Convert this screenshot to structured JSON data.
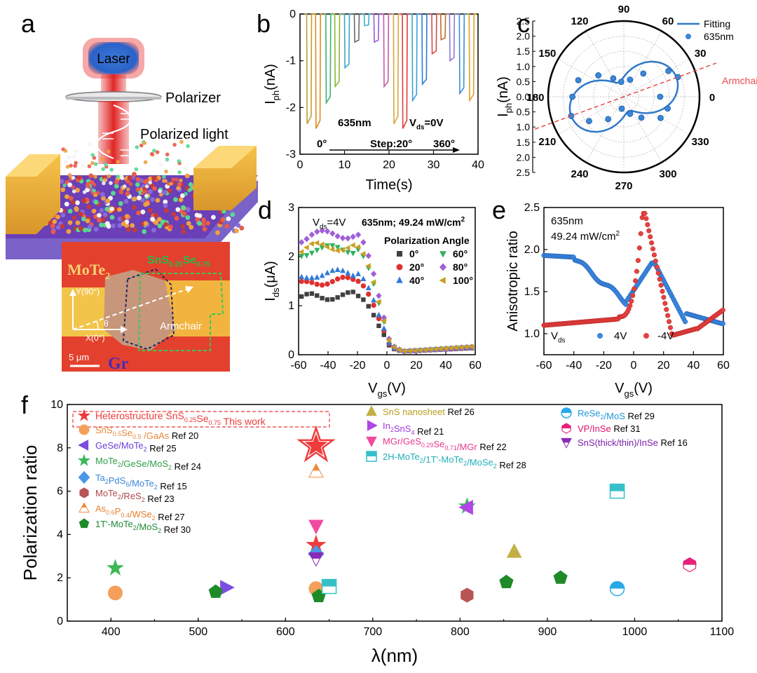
{
  "panels": {
    "a": {
      "letter": "a",
      "laser": "Laser",
      "polarizer": "Polarizer",
      "polarized_light": "Polarized light",
      "mote2": "MoTe",
      "mote2_sub": "2",
      "sns_label": "SnS",
      "sns_sub1": "0.25",
      "sns_se": "Se",
      "sns_sub2": "0.75",
      "y_axis_label": "Y(90°)",
      "x_axis_label": "X(0°)",
      "theta": "θ",
      "armchair": "Armchair",
      "scale": "5 μm",
      "gr": "Gr"
    },
    "b": {
      "letter": "b"
    },
    "c": {
      "letter": "c"
    },
    "d": {
      "letter": "d"
    },
    "e": {
      "letter": "e"
    },
    "f": {
      "letter": "f"
    }
  },
  "chart_data": [
    {
      "id": "b",
      "type": "line",
      "title": "",
      "xlabel": "Time(s)",
      "ylabel_main": "I",
      "ylabel_sub": "ph",
      "ylabel_unit": "(nA)",
      "xlim": [
        0,
        40
      ],
      "ylim": [
        -3,
        0
      ],
      "xticks": [
        0,
        10,
        20,
        30,
        40
      ],
      "yticks": [
        0,
        -1,
        -2,
        -3
      ],
      "annotations": {
        "wavelength": "635nm",
        "vds_main": "V",
        "vds_sub": "ds",
        "vds_val": "=0V",
        "start": "0°",
        "step": "Step:20°",
        "end": "360°"
      },
      "pulses": [
        {
          "t": 1.5,
          "depth": -2.35,
          "color": "#b8a22e"
        },
        {
          "t": 3.5,
          "depth": -2.45,
          "color": "#e08a1e"
        },
        {
          "t": 5.8,
          "depth": -1.9,
          "color": "#3bb273"
        },
        {
          "t": 7.8,
          "depth": -1.55,
          "color": "#8ab832"
        },
        {
          "t": 10.0,
          "depth": -1.15,
          "color": "#3aa6c7"
        },
        {
          "t": 12.2,
          "depth": -0.6,
          "color": "#6a6a6a"
        },
        {
          "t": 14.4,
          "depth": -0.25,
          "color": "#3ab5c9"
        },
        {
          "t": 16.6,
          "depth": -0.6,
          "color": "#9b59d0"
        },
        {
          "t": 18.8,
          "depth": -1.55,
          "color": "#c45aa8"
        },
        {
          "t": 21.0,
          "depth": -2.35,
          "color": "#d8a63a"
        },
        {
          "t": 23.0,
          "depth": -2.45,
          "color": "#e23b3b"
        },
        {
          "t": 25.2,
          "depth": -1.85,
          "color": "#3aa0d8"
        },
        {
          "t": 27.4,
          "depth": -1.5,
          "color": "#2f7bd1"
        },
        {
          "t": 29.6,
          "depth": -0.85,
          "color": "#d34a4a"
        },
        {
          "t": 31.6,
          "depth": -0.55,
          "color": "#c46a2c"
        },
        {
          "t": 33.6,
          "depth": -1.0,
          "color": "#8c7ad0"
        },
        {
          "t": 35.8,
          "depth": -1.7,
          "color": "#3a8fd8"
        },
        {
          "t": 38.0,
          "depth": -1.85,
          "color": "#e0a020"
        }
      ]
    },
    {
      "id": "c",
      "type": "scatter",
      "title": "",
      "ylabel_main": "I",
      "ylabel_sub": "ph",
      "ylabel_unit": "(nA)",
      "angle_labels": [
        "0",
        "30",
        "60",
        "90",
        "120",
        "150",
        "180",
        "210",
        "240",
        "270",
        "300",
        "330"
      ],
      "radial_ticks": [
        "2.5",
        "2.0",
        "1.5",
        "1.0",
        "0.5",
        "0.0",
        "0.5",
        "1.0",
        "1.5",
        "2.0",
        "2.5"
      ],
      "rmax": 2.5,
      "legend": [
        {
          "label": "Fitting",
          "color": "#2f78c8"
        },
        {
          "label": "635nm",
          "color": "#2f78c8"
        }
      ],
      "axis_annotation": "Armchair",
      "armchair_angle_deg": 20,
      "fit": {
        "a": 0.5,
        "b": 1.85,
        "phase_deg": 20
      },
      "points": [
        {
          "angle": 0,
          "r": 1.2
        },
        {
          "angle": 20,
          "r": 1.9
        },
        {
          "angle": 30,
          "r": 1.7
        },
        {
          "angle": 50,
          "r": 1.0
        },
        {
          "angle": 70,
          "r": 0.6
        },
        {
          "angle": 100,
          "r": 0.5
        },
        {
          "angle": 120,
          "r": 0.7
        },
        {
          "angle": 140,
          "r": 1.1
        },
        {
          "angle": 160,
          "r": 1.6
        },
        {
          "angle": 180,
          "r": 1.7
        },
        {
          "angle": 200,
          "r": 1.85
        },
        {
          "angle": 215,
          "r": 1.4
        },
        {
          "angle": 235,
          "r": 0.9
        },
        {
          "angle": 260,
          "r": 0.4
        },
        {
          "angle": 290,
          "r": 0.6
        },
        {
          "angle": 310,
          "r": 0.9
        },
        {
          "angle": 330,
          "r": 1.4
        },
        {
          "angle": 345,
          "r": 1.5
        }
      ]
    },
    {
      "id": "d",
      "type": "scatter",
      "title": "",
      "xlabel_main": "V",
      "xlabel_sub": "gs",
      "xlabel_unit": "(V)",
      "ylabel_main": "I",
      "ylabel_sub": "ds",
      "ylabel_unit": "(μA)",
      "xlim": [
        -60,
        60
      ],
      "ylim": [
        0,
        3
      ],
      "xticks": [
        -60,
        -40,
        -20,
        0,
        20,
        40,
        60
      ],
      "yticks": [
        0,
        1,
        2,
        3
      ],
      "annotations": {
        "vds_main": "V",
        "vds_sub": "ds",
        "vds_val": "=4V",
        "cond": "635nm; 49.24 mW/cm",
        "cond_sup": "2",
        "legend_title": "Polarization Angle"
      },
      "series": [
        {
          "name": "0°",
          "color": "#404040",
          "marker": "square",
          "plateau": 1.2
        },
        {
          "name": "20°",
          "color": "#e03030",
          "marker": "circle",
          "plateau": 1.5
        },
        {
          "name": "40°",
          "color": "#2f7bd8",
          "marker": "triangle-up",
          "plateau": 1.65
        },
        {
          "name": "60°",
          "color": "#2fb060",
          "marker": "triangle-down",
          "plateau": 2.15
        },
        {
          "name": "80°",
          "color": "#a060d8",
          "marker": "diamond",
          "plateau": 2.45
        },
        {
          "name": "100°",
          "color": "#c8a020",
          "marker": "triangle-left",
          "plateau": 2.2
        }
      ]
    },
    {
      "id": "e",
      "type": "scatter",
      "title": "",
      "xlabel_main": "V",
      "xlabel_sub": "gs",
      "xlabel_unit": "(V)",
      "ylabel": "Anisotropic ratio",
      "xlim": [
        -60,
        60
      ],
      "ylim": [
        0.75,
        2.5
      ],
      "xticks": [
        -60,
        -40,
        -20,
        0,
        20,
        40,
        60
      ],
      "yticks": [
        1.0,
        1.5,
        2.0,
        2.5
      ],
      "annotations": {
        "wl": "635nm",
        "power": "49.24 mW/cm",
        "power_sup": "2",
        "vds_main": "V",
        "vds_sub": "ds"
      },
      "series": [
        {
          "name": "4V",
          "color": "#2f78d8"
        },
        {
          "name": "-4V",
          "color": "#e03030"
        }
      ]
    },
    {
      "id": "f",
      "type": "scatter",
      "title": "",
      "xlabel": "λ(nm)",
      "ylabel": "Polarization ratio",
      "xlim": [
        350,
        1100
      ],
      "ylim": [
        0,
        10
      ],
      "xticks": [
        400,
        500,
        600,
        700,
        800,
        900,
        1000,
        1100
      ],
      "yticks": [
        0,
        2,
        4,
        6,
        8,
        10
      ],
      "legend": [
        {
          "id": "L0",
          "col": 0,
          "row": 0,
          "marker": "star",
          "fill": "#ef3b3b",
          "stroke": "#ef3b3b",
          "parts": [
            [
              "Heterostructure ",
              ""
            ],
            [
              "SnS",
              ""
            ],
            [
              "0.25",
              "sub"
            ],
            [
              "Se",
              ""
            ],
            [
              "0.75",
              "sub"
            ],
            [
              " This work",
              ""
            ]
          ],
          "color": "#ef3b3b",
          "highlight": true
        },
        {
          "id": "L1",
          "col": 0,
          "row": 1,
          "marker": "circle",
          "fill": "#f4a05a",
          "stroke": "#f4a05a",
          "parts": [
            [
              "SnS",
              ""
            ],
            [
              "0.5",
              "sub"
            ],
            [
              "Se",
              ""
            ],
            [
              "0.5",
              "sub"
            ],
            [
              " /GaAs",
              ""
            ],
            [
              " Ref 20",
              "ref"
            ]
          ],
          "color": "#e8883c"
        },
        {
          "id": "L2",
          "col": 0,
          "row": 2,
          "marker": "triangle-left",
          "fill": "#7b4ee0",
          "stroke": "#7b4ee0",
          "parts": [
            [
              "GeSe/MoTe",
              ""
            ],
            [
              "2",
              "sub"
            ],
            [
              " Ref 25",
              "ref"
            ]
          ],
          "color": "#6b3fd6"
        },
        {
          "id": "L3",
          "col": 0,
          "row": 3,
          "marker": "star",
          "fill": "#3cb857",
          "stroke": "#3cb857",
          "parts": [
            [
              "MoTe",
              ""
            ],
            [
              "2",
              "sub"
            ],
            [
              "/GeSe/MoS",
              ""
            ],
            [
              "2",
              "sub"
            ],
            [
              " Ref 24",
              "ref"
            ]
          ],
          "color": "#2e9e48"
        },
        {
          "id": "L4",
          "col": 0,
          "row": 4,
          "marker": "diamond",
          "fill": "#4a98e8",
          "stroke": "#4a98e8",
          "parts": [
            [
              "Ta",
              ""
            ],
            [
              "2",
              "sub"
            ],
            [
              "PdS",
              ""
            ],
            [
              "6",
              "sub"
            ],
            [
              "/MoTe",
              ""
            ],
            [
              "2",
              "sub"
            ],
            [
              " Ref 15",
              "ref"
            ]
          ],
          "color": "#3a88d8"
        },
        {
          "id": "L5",
          "col": 0,
          "row": 5,
          "marker": "hexagon",
          "fill": "#b85454",
          "stroke": "#b85454",
          "parts": [
            [
              "MoTe",
              ""
            ],
            [
              "2",
              "sub"
            ],
            [
              "/ReS",
              ""
            ],
            [
              "2",
              "sub"
            ],
            [
              " Ref 23",
              "ref"
            ]
          ],
          "color": "#b04848"
        },
        {
          "id": "L6",
          "col": 0,
          "row": 6,
          "marker": "triangle-split",
          "fill": "#f08a3a",
          "stroke": "#f08a3a",
          "parts": [
            [
              "As",
              ""
            ],
            [
              "0.6",
              "sub"
            ],
            [
              "P",
              ""
            ],
            [
              "0.4",
              "sub"
            ],
            [
              "/WSe",
              ""
            ],
            [
              "2",
              "sub"
            ],
            [
              " Ref 27",
              "ref"
            ]
          ],
          "color": "#e8802e"
        },
        {
          "id": "L7",
          "col": 0,
          "row": 7,
          "marker": "pentagon",
          "fill": "#1e8a28",
          "stroke": "#1e8a28",
          "parts": [
            [
              "1T'-MoTe",
              ""
            ],
            [
              "2",
              "sub"
            ],
            [
              "/MoS",
              ""
            ],
            [
              "2",
              "sub"
            ],
            [
              " Ref 30",
              "ref"
            ]
          ],
          "color": "#1e8a38"
        },
        {
          "id": "L8",
          "col": 1,
          "row": 0,
          "marker": "triangle-up",
          "fill": "#c2b042",
          "stroke": "#c2b042",
          "parts": [
            [
              "SnS nanosheet",
              ""
            ],
            [
              " Ref 26",
              "ref"
            ]
          ],
          "color": "#b8a020"
        },
        {
          "id": "L9",
          "col": 1,
          "row": 1,
          "marker": "triangle-right",
          "fill": "#b045e8",
          "stroke": "#b045e8",
          "parts": [
            [
              "In",
              ""
            ],
            [
              "2",
              "sub"
            ],
            [
              "SnS",
              ""
            ],
            [
              "4",
              "sub"
            ],
            [
              " Ref 21",
              "ref"
            ]
          ],
          "color": "#a038e0"
        },
        {
          "id": "L10",
          "col": 1,
          "row": 2,
          "marker": "triangle-down",
          "fill": "#f04aa0",
          "stroke": "#f04aa0",
          "parts": [
            [
              "MGr/GeS",
              ""
            ],
            [
              "0.29",
              "sub"
            ],
            [
              "Se",
              ""
            ],
            [
              "0.71",
              "sub"
            ],
            [
              "/MGr",
              ""
            ],
            [
              " Ref 22",
              "ref"
            ]
          ],
          "color": "#e83890"
        },
        {
          "id": "L11",
          "col": 1,
          "row": 3,
          "marker": "square-split",
          "fill": "#35c0c8",
          "stroke": "#35c0c8",
          "parts": [
            [
              "2H-MoTe",
              ""
            ],
            [
              "2",
              "sub"
            ],
            [
              "/1T'-MoTe",
              ""
            ],
            [
              "2",
              "sub"
            ],
            [
              "/MoSe",
              ""
            ],
            [
              "2",
              "sub"
            ],
            [
              " Ref 28",
              "ref"
            ]
          ],
          "color": "#20b0b8"
        },
        {
          "id": "L12",
          "col": 2,
          "row": 0,
          "marker": "circle-split",
          "fill": "#2aa8e8",
          "stroke": "#2aa8e8",
          "parts": [
            [
              "ReSe",
              ""
            ],
            [
              "2",
              "sub"
            ],
            [
              "/MoS",
              ""
            ],
            [
              " Ref 29",
              "ref"
            ]
          ],
          "color": "#1f98d8"
        },
        {
          "id": "L13",
          "col": 2,
          "row": 1,
          "marker": "hexagon-split",
          "fill": "#e8207a",
          "stroke": "#e8207a",
          "parts": [
            [
              "VP/InSe",
              ""
            ],
            [
              " Ref 31",
              "ref"
            ]
          ],
          "color": "#e0106a"
        },
        {
          "id": "L14",
          "col": 2,
          "row": 2,
          "marker": "triangle-down-split",
          "fill": "#8a2ab8",
          "stroke": "#8a2ab8",
          "parts": [
            [
              "SnS(thick/thin)/InSe",
              ""
            ],
            [
              " Ref 16",
              "ref"
            ]
          ],
          "color": "#7a1ea8"
        }
      ],
      "points": [
        {
          "series": "L0",
          "x": 635,
          "y": 8.1,
          "marker": "star-open"
        },
        {
          "series": "L0",
          "x": 635,
          "y": 3.5,
          "marker": "star"
        },
        {
          "series": "L1",
          "x": 405,
          "y": 1.3,
          "marker": "circle"
        },
        {
          "series": "L1",
          "x": 635,
          "y": 1.5,
          "marker": "circle"
        },
        {
          "series": "L2",
          "x": 532,
          "y": 1.55,
          "marker": "triangle-right"
        },
        {
          "series": "L3",
          "x": 405,
          "y": 2.45,
          "marker": "star"
        },
        {
          "series": "L3",
          "x": 808,
          "y": 5.3,
          "marker": "star"
        },
        {
          "series": "L4",
          "x": 635,
          "y": 3.1,
          "marker": "diamond"
        },
        {
          "series": "L5",
          "x": 808,
          "y": 1.2,
          "marker": "hexagon"
        },
        {
          "series": "L6",
          "x": 635,
          "y": 6.9,
          "marker": "triangle-split"
        },
        {
          "series": "L7",
          "x": 520,
          "y": 1.35,
          "marker": "pentagon"
        },
        {
          "series": "L7",
          "x": 638,
          "y": 1.15,
          "marker": "pentagon"
        },
        {
          "series": "L7",
          "x": 853,
          "y": 1.8,
          "marker": "pentagon"
        },
        {
          "series": "L7",
          "x": 915,
          "y": 2.0,
          "marker": "pentagon"
        },
        {
          "series": "L8",
          "x": 862,
          "y": 3.2,
          "marker": "triangle-up"
        },
        {
          "series": "L9",
          "x": 808,
          "y": 5.25,
          "marker": "triangle-left"
        },
        {
          "series": "L10",
          "x": 635,
          "y": 4.4,
          "marker": "triangle-down"
        },
        {
          "series": "L11",
          "x": 650,
          "y": 1.6,
          "marker": "square-split"
        },
        {
          "series": "L11",
          "x": 980,
          "y": 6.0,
          "marker": "square-split"
        },
        {
          "series": "L12",
          "x": 980,
          "y": 1.5,
          "marker": "circle-split"
        },
        {
          "series": "L13",
          "x": 1063,
          "y": 2.6,
          "marker": "hexagon-split"
        },
        {
          "series": "L14",
          "x": 635,
          "y": 2.9,
          "marker": "triangle-down-split"
        }
      ]
    }
  ]
}
